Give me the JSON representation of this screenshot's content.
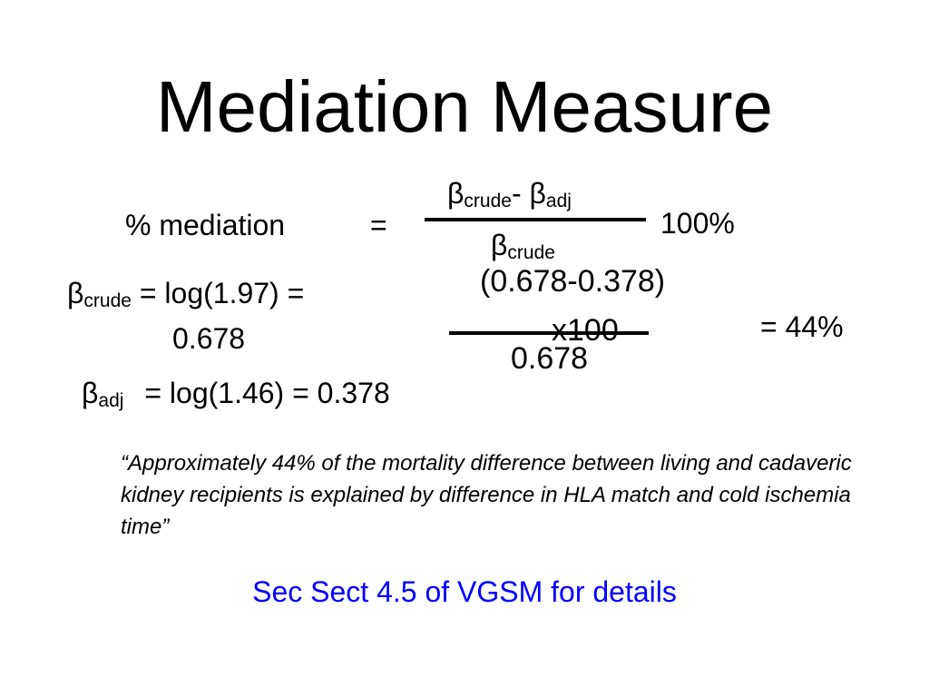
{
  "slide": {
    "title": "Mediation Measure",
    "formula": {
      "lhs_label": "% mediation",
      "equals": "=",
      "beta": "β",
      "crude_sub": "crude",
      "adj_sub": "adj",
      "minus": "-",
      "multiplier": "100%"
    },
    "beta_crude_line": {
      "beta": "β",
      "sub": "crude",
      "expr": "= log(1.97) =",
      "value": "0.678"
    },
    "beta_adj_line": {
      "beta": "β",
      "sub": "adj",
      "expr": "= log(1.46) = 0.378"
    },
    "calc": {
      "numerator": "(0.678-0.378)",
      "x100": "x100",
      "denominator": "0.678",
      "result": "= 44%"
    },
    "quote": {
      "open": "“",
      "text": "Approximately 44% of the mortality difference between living and cadaveric kidney recipients is explained by difference in HLA match and cold ischemia time",
      "close": "”"
    },
    "link_text": "Sec Sect 4.5 of VGSM for details",
    "colors": {
      "background": "#ffffff",
      "text": "#000000",
      "link": "#0000ff"
    }
  }
}
